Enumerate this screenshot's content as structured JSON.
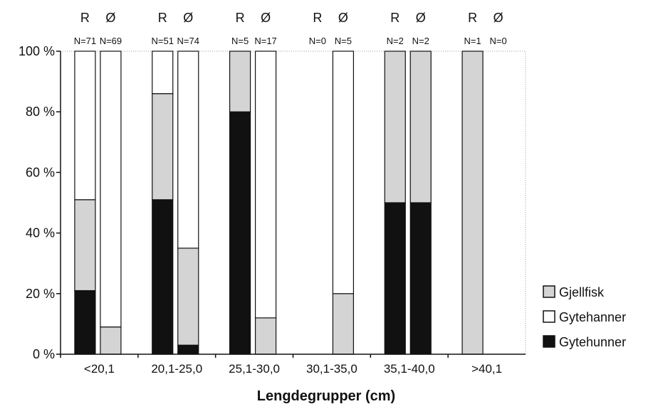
{
  "chart_data": {
    "type": "bar",
    "stacked": true,
    "normalized_percent": true,
    "xlabel": "Lengdegrupper (cm)",
    "ylabel": "",
    "ylim": [
      0,
      100
    ],
    "yticks": [
      "0 %",
      "20 %",
      "40 %",
      "60 %",
      "80 %",
      "100 %"
    ],
    "grid": false,
    "legend_position": "right",
    "categories": [
      "<20,1",
      "20,1-25,0",
      "25,1-30,0",
      "30,1-35,0",
      "35,1-40,0",
      ">40,1"
    ],
    "bar_groups": [
      "R",
      "Ø"
    ],
    "legend": [
      {
        "name": "Gjellfisk",
        "color": "#d4d4d4"
      },
      {
        "name": "Gytehanner",
        "color": "#ffffff"
      },
      {
        "name": "Gytehunner",
        "color": "#111111"
      }
    ],
    "counts": {
      "R": [
        "N=71",
        "N=51",
        "N=5",
        "N=0",
        "N=2",
        "N=1"
      ],
      "Ø": [
        "N=69",
        "N=74",
        "N=17",
        "N=5",
        "N=2",
        "N=0"
      ]
    },
    "series": [
      {
        "name": "Gytehunner",
        "values": {
          "R": [
            21,
            51,
            80,
            0,
            50,
            0
          ],
          "Ø": [
            0,
            3,
            0,
            0,
            50,
            0
          ]
        }
      },
      {
        "name": "Gjellfisk",
        "values": {
          "R": [
            30,
            35,
            20,
            0,
            50,
            100
          ],
          "Ø": [
            9,
            32,
            12,
            20,
            50,
            0
          ]
        }
      },
      {
        "name": "Gytehanner",
        "values": {
          "R": [
            49,
            14,
            0,
            0,
            0,
            0
          ],
          "Ø": [
            91,
            65,
            88,
            80,
            0,
            0
          ]
        }
      }
    ]
  }
}
